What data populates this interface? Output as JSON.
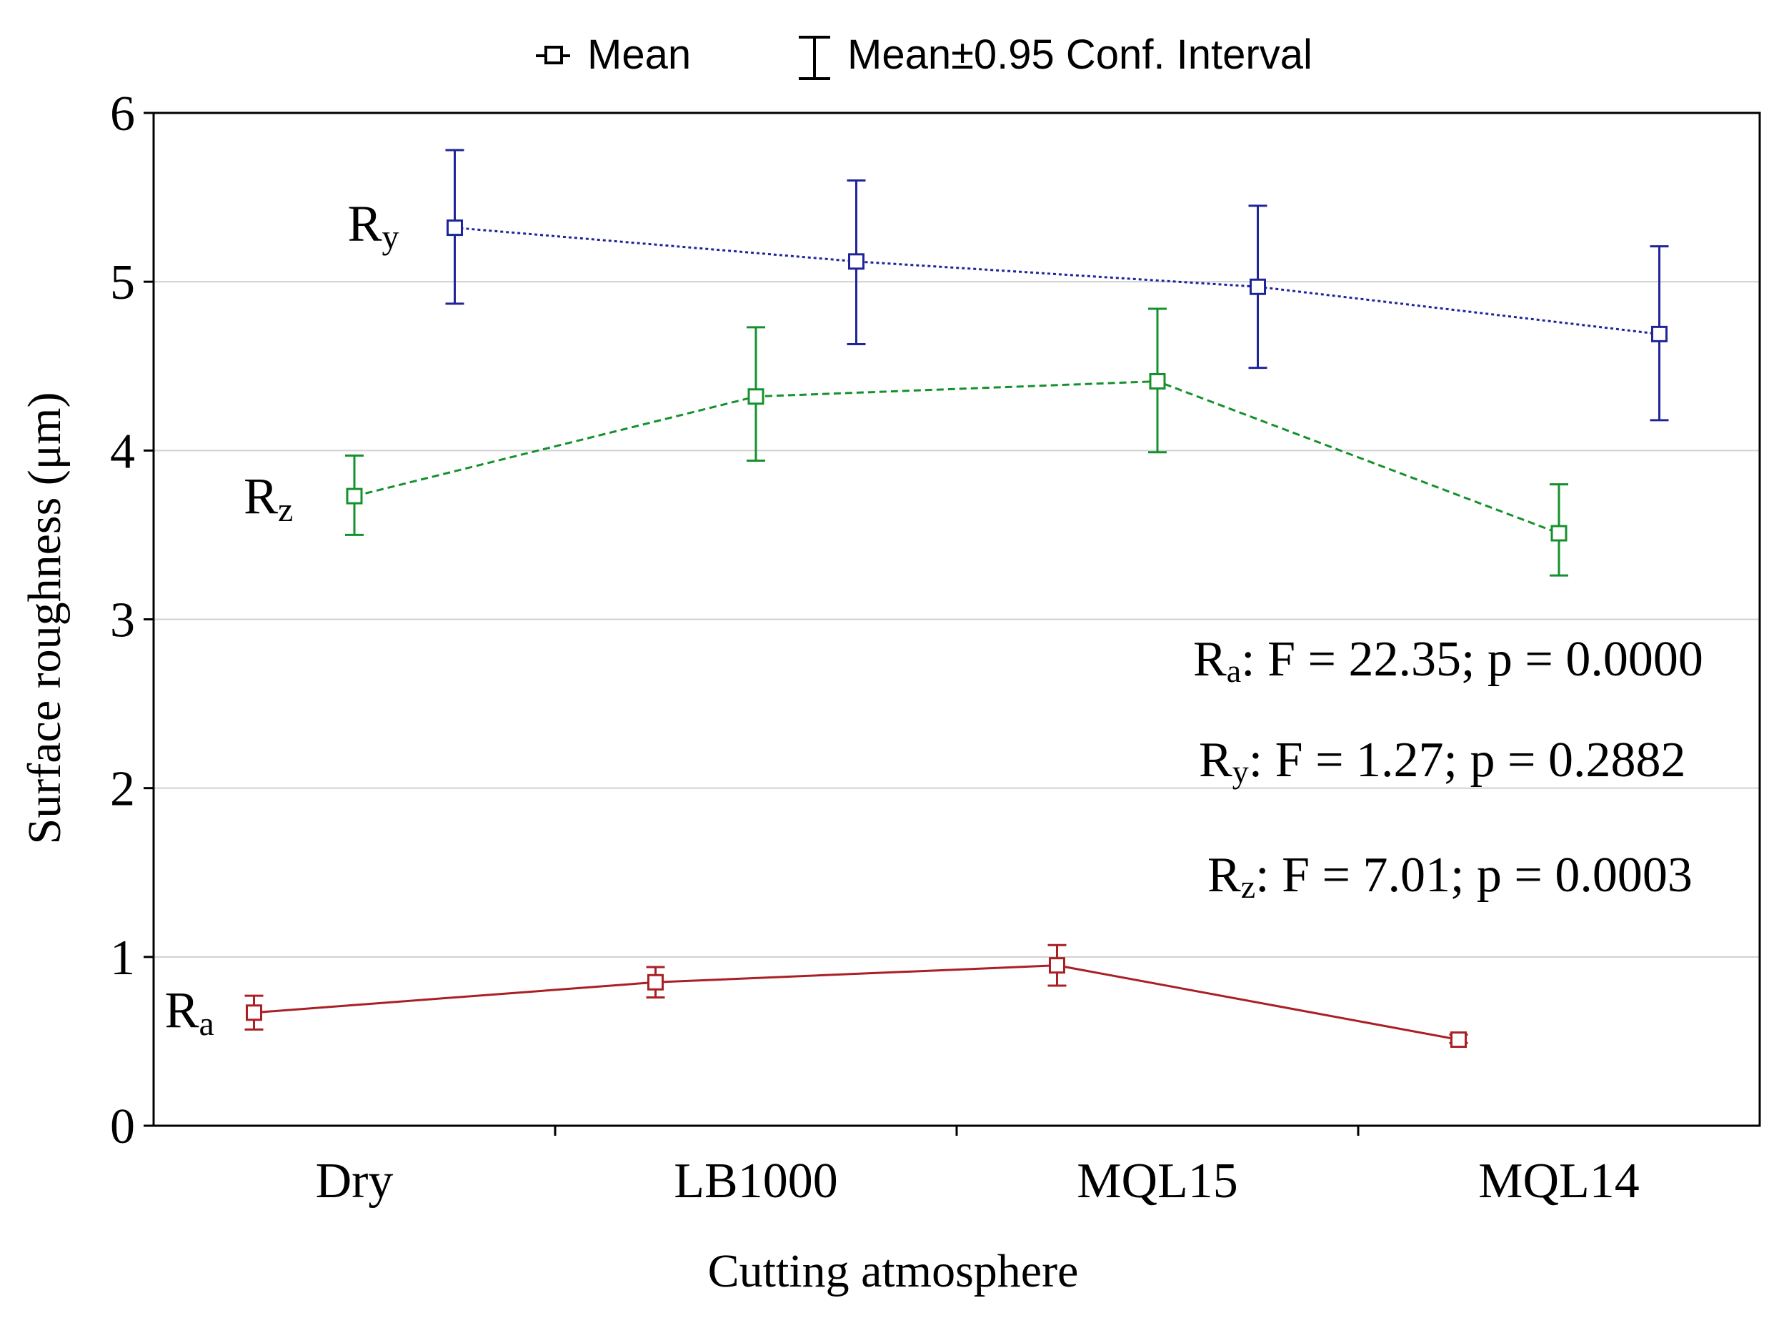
{
  "chart_data": {
    "type": "line",
    "xlabel": "Cutting atmosphere",
    "ylabel": "Surface roughness (μm)",
    "ylim": [
      0,
      6
    ],
    "yticks": [
      "0",
      "1",
      "2",
      "3",
      "4",
      "5",
      "6"
    ],
    "categories": [
      "Dry",
      "LB1000",
      "MQL15",
      "MQL14"
    ],
    "grid": true,
    "legend": {
      "placement": "top-center",
      "entries": [
        "Mean",
        "Mean±0.95 Conf. Interval"
      ]
    },
    "series": [
      {
        "key": "ra",
        "name": "R",
        "subscript": "a",
        "color": "#aa1f24",
        "line_style": "solid",
        "x_offset": -0.25,
        "values": [
          0.67,
          0.85,
          0.95,
          0.51
        ],
        "ci_low": [
          0.57,
          0.76,
          0.83,
          0.49
        ],
        "ci_high": [
          0.77,
          0.94,
          1.07,
          0.54
        ]
      },
      {
        "key": "rz",
        "name": "R",
        "subscript": "z",
        "color": "#14912c",
        "line_style": "dashed",
        "x_offset": 0.0,
        "values": [
          3.73,
          4.32,
          4.41,
          3.51
        ],
        "ci_low": [
          3.5,
          3.94,
          3.99,
          3.26
        ],
        "ci_high": [
          3.97,
          4.73,
          4.84,
          3.8
        ]
      },
      {
        "key": "ry",
        "name": "R",
        "subscript": "y",
        "color": "#20249a",
        "line_style": "dotted",
        "x_offset": 0.25,
        "values": [
          5.32,
          5.12,
          4.97,
          4.69
        ],
        "ci_low": [
          4.87,
          4.63,
          4.49,
          4.18
        ],
        "ci_high": [
          5.78,
          5.6,
          5.45,
          5.21
        ]
      }
    ],
    "annotations": [
      {
        "name": "R",
        "subscript": "a",
        "text": ": F = 22.35; p = 0.0000"
      },
      {
        "name": "R",
        "subscript": "y",
        "text": ": F = 1.27; p = 0.2882"
      },
      {
        "name": "R",
        "subscript": "z",
        "text": ": F = 7.01; p = 0.0003"
      }
    ]
  }
}
